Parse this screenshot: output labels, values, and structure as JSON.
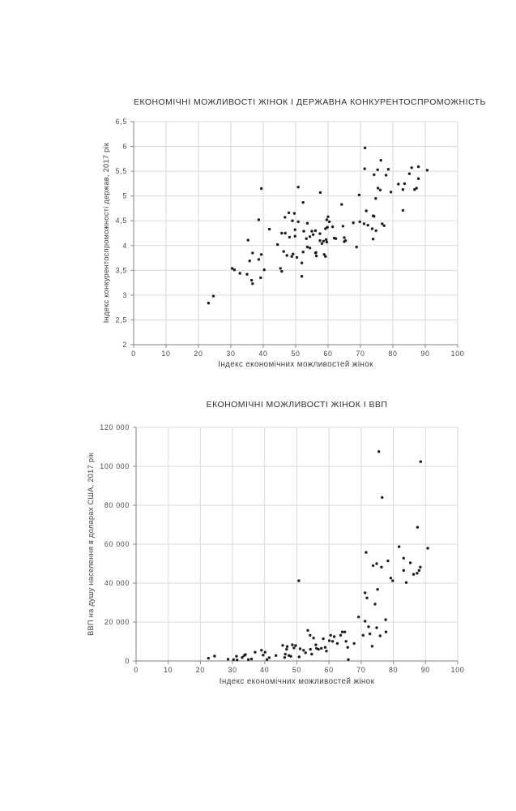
{
  "page": {
    "background": "#ffffff"
  },
  "colors": {
    "dot": "#1e1e1e",
    "grid": "#dadada",
    "axis": "#7f7f7f",
    "tick_mark": "#8a8a8a",
    "title_text": "#2d2d2d",
    "tick_text": "#474747"
  },
  "chart_data": [
    {
      "type": "scatter",
      "title": "ЕКОНОМІЧНІ МОЖЛИВОСТІ ЖІНОК І ДЕРЖАВНА КОНКУРЕНТОСПРОМОЖНІСТЬ",
      "xlabel": "Індекс економічних можливостей жінок",
      "ylabel": "Індекс конкурентоспроможності держав, 2017 рік",
      "xlim": [
        0,
        100
      ],
      "ylim": [
        2,
        6.5
      ],
      "grid": true,
      "legend": "none",
      "xticks": [
        0,
        10,
        20,
        30,
        40,
        50,
        60,
        70,
        80,
        90,
        100
      ],
      "xtick_labels": [
        "0",
        "10",
        "20",
        "30",
        "40",
        "50",
        "60",
        "70",
        "80",
        "90",
        "100"
      ],
      "yticks": [
        2,
        2.5,
        3,
        3.5,
        4,
        4.5,
        5,
        5.5,
        6,
        6.5
      ],
      "ytick_labels": [
        "2",
        "2,5",
        "3",
        "3,5",
        "4",
        "4,5",
        "5",
        "5,5",
        "6",
        "6,5"
      ],
      "points": [
        [
          39.4,
          5.15
        ],
        [
          50.8,
          5.18
        ],
        [
          57.6,
          5.07
        ],
        [
          71.4,
          5.97
        ],
        [
          76.3,
          5.72
        ],
        [
          71.3,
          5.55
        ],
        [
          74.2,
          5.43
        ],
        [
          75.3,
          5.53
        ],
        [
          78.6,
          5.54
        ],
        [
          77.9,
          5.42
        ],
        [
          85.8,
          5.57
        ],
        [
          87.9,
          5.59
        ],
        [
          85.1,
          5.45
        ],
        [
          90.6,
          5.52
        ],
        [
          87.9,
          5.35
        ],
        [
          81.7,
          5.24
        ],
        [
          83.6,
          5.25
        ],
        [
          83.1,
          5.13
        ],
        [
          86.7,
          5.13
        ],
        [
          87.3,
          5.16
        ],
        [
          75.4,
          5.16
        ],
        [
          76.1,
          5.12
        ],
        [
          69.6,
          5.02
        ],
        [
          74.7,
          4.95
        ],
        [
          79.4,
          5.08
        ],
        [
          52.3,
          4.87
        ],
        [
          64.2,
          4.83
        ],
        [
          71.8,
          4.7
        ],
        [
          83.1,
          4.71
        ],
        [
          73.9,
          4.6
        ],
        [
          74.2,
          4.59
        ],
        [
          60.0,
          4.58
        ],
        [
          46.7,
          4.57
        ],
        [
          47.9,
          4.66
        ],
        [
          49.6,
          4.65
        ],
        [
          38.6,
          4.52
        ],
        [
          49.0,
          4.5
        ],
        [
          50.8,
          4.48
        ],
        [
          53.6,
          4.45
        ],
        [
          59.6,
          4.52
        ],
        [
          60.4,
          4.48
        ],
        [
          67.8,
          4.46
        ],
        [
          69.8,
          4.48
        ],
        [
          71.1,
          4.44
        ],
        [
          76.7,
          4.44
        ],
        [
          77.3,
          4.4
        ],
        [
          72.3,
          4.41
        ],
        [
          64.6,
          4.39
        ],
        [
          61.4,
          4.38
        ],
        [
          59.8,
          4.37
        ],
        [
          73.6,
          4.34
        ],
        [
          74.8,
          4.3
        ],
        [
          57.5,
          4.24
        ],
        [
          59.2,
          4.34
        ],
        [
          55.0,
          4.29
        ],
        [
          56.1,
          4.3
        ],
        [
          52.5,
          4.29
        ],
        [
          53.3,
          4.14
        ],
        [
          54.4,
          4.18
        ],
        [
          55.4,
          4.22
        ],
        [
          61.9,
          4.15
        ],
        [
          62.4,
          4.14
        ],
        [
          65.0,
          4.16
        ],
        [
          65.0,
          4.08
        ],
        [
          65.4,
          4.1
        ],
        [
          58.6,
          4.09
        ],
        [
          59.4,
          4.12
        ],
        [
          57.5,
          4.1
        ],
        [
          58.1,
          4.04
        ],
        [
          59.6,
          4.07
        ],
        [
          73.9,
          4.13
        ],
        [
          68.8,
          3.97
        ],
        [
          41.9,
          4.33
        ],
        [
          45.7,
          4.25
        ],
        [
          46.8,
          4.25
        ],
        [
          48.1,
          4.17
        ],
        [
          49.8,
          4.32
        ],
        [
          49.8,
          4.19
        ],
        [
          35.3,
          4.11
        ],
        [
          44.4,
          4.02
        ],
        [
          36.7,
          3.85
        ],
        [
          39.4,
          3.82
        ],
        [
          46.3,
          3.88
        ],
        [
          47.3,
          3.8
        ],
        [
          49.2,
          3.83
        ],
        [
          50.4,
          3.76
        ],
        [
          48.8,
          3.78
        ],
        [
          52.3,
          3.87
        ],
        [
          53.6,
          3.97
        ],
        [
          54.4,
          3.95
        ],
        [
          56.1,
          3.85
        ],
        [
          56.4,
          3.79
        ],
        [
          56.3,
          3.86
        ],
        [
          58.8,
          3.82
        ],
        [
          59.2,
          3.78
        ],
        [
          35.8,
          3.69
        ],
        [
          38.6,
          3.72
        ],
        [
          51.9,
          3.65
        ],
        [
          30.4,
          3.54
        ],
        [
          31.1,
          3.51
        ],
        [
          32.8,
          3.44
        ],
        [
          35.0,
          3.42
        ],
        [
          40.3,
          3.51
        ],
        [
          45.3,
          3.54
        ],
        [
          45.7,
          3.48
        ],
        [
          39.2,
          3.35
        ],
        [
          36.4,
          3.3
        ],
        [
          36.7,
          3.23
        ],
        [
          51.9,
          3.38
        ],
        [
          24.6,
          2.98
        ],
        [
          23.1,
          2.84
        ]
      ]
    },
    {
      "type": "scatter",
      "title": "ЕКОНОМІЧНІ МОЖЛИВОСТІ ЖІНОК І ВВП",
      "xlabel": "Індекс економічних можливостей жінок",
      "ylabel": "ВВП на душу населення в доларах США, 2017 рік",
      "xlim": [
        0,
        100
      ],
      "ylim": [
        0,
        120000
      ],
      "grid": true,
      "legend": "none",
      "xticks": [
        0,
        10,
        20,
        30,
        40,
        50,
        60,
        70,
        80,
        90,
        100
      ],
      "xtick_labels": [
        "0",
        "10",
        "20",
        "30",
        "40",
        "50",
        "60",
        "70",
        "80",
        "90",
        "100"
      ],
      "yticks": [
        0,
        20000,
        40000,
        60000,
        80000,
        100000,
        120000
      ],
      "ytick_labels": [
        "0",
        "20 000",
        "40 000",
        "60 000",
        "80 000",
        "100 000",
        "120 000"
      ],
      "points": [
        [
          75.5,
          107600
        ],
        [
          88.5,
          102400
        ],
        [
          76.5,
          84000
        ],
        [
          87.5,
          68700
        ],
        [
          81.8,
          58700
        ],
        [
          90.7,
          57900
        ],
        [
          71.5,
          55800
        ],
        [
          78.3,
          51400
        ],
        [
          83.2,
          52800
        ],
        [
          73.7,
          49000
        ],
        [
          74.8,
          50000
        ],
        [
          76.3,
          48200
        ],
        [
          85.3,
          50400
        ],
        [
          88.4,
          48200
        ],
        [
          88.0,
          46500
        ],
        [
          83.2,
          46500
        ],
        [
          86.3,
          44500
        ],
        [
          87.4,
          45100
        ],
        [
          79.2,
          42600
        ],
        [
          79.8,
          41200
        ],
        [
          84.0,
          40300
        ],
        [
          50.6,
          41200
        ],
        [
          75.1,
          36800
        ],
        [
          71.2,
          35000
        ],
        [
          71.8,
          32400
        ],
        [
          74.3,
          29200
        ],
        [
          69.2,
          22600
        ],
        [
          71.2,
          20400
        ],
        [
          77.6,
          21200
        ],
        [
          72.3,
          17600
        ],
        [
          74.8,
          17100
        ],
        [
          72.7,
          13900
        ],
        [
          70.6,
          13200
        ],
        [
          75.9,
          12900
        ],
        [
          77.7,
          14900
        ],
        [
          73.4,
          7600
        ],
        [
          22.5,
          1400
        ],
        [
          24.4,
          2500
        ],
        [
          28.6,
          900
        ],
        [
          30.3,
          700
        ],
        [
          31.2,
          2400
        ],
        [
          31.4,
          500
        ],
        [
          33.0,
          1800
        ],
        [
          33.6,
          2800
        ],
        [
          34.0,
          3300
        ],
        [
          34.9,
          700
        ],
        [
          35.9,
          1000
        ],
        [
          37.0,
          4500
        ],
        [
          39.0,
          5500
        ],
        [
          39.5,
          3000
        ],
        [
          40.1,
          4500
        ],
        [
          40.7,
          700
        ],
        [
          41.4,
          1700
        ],
        [
          43.5,
          2800
        ],
        [
          45.6,
          8000
        ],
        [
          46.2,
          1800
        ],
        [
          46.4,
          3500
        ],
        [
          46.8,
          6000
        ],
        [
          47.0,
          7400
        ],
        [
          47.5,
          2800
        ],
        [
          48.6,
          8300
        ],
        [
          48.1,
          2400
        ],
        [
          49.1,
          6700
        ],
        [
          49.6,
          7900
        ],
        [
          50.7,
          2100
        ],
        [
          51.0,
          6250
        ],
        [
          52.1,
          5500
        ],
        [
          52.7,
          4200
        ],
        [
          53.4,
          15700
        ],
        [
          54.1,
          13200
        ],
        [
          54.2,
          6000
        ],
        [
          54.6,
          3500
        ],
        [
          55.2,
          11800
        ],
        [
          55.9,
          8300
        ],
        [
          56.1,
          6500
        ],
        [
          56.7,
          6000
        ],
        [
          57.6,
          6500
        ],
        [
          58.2,
          11400
        ],
        [
          58.8,
          7000
        ],
        [
          59.2,
          5100
        ],
        [
          60.1,
          10400
        ],
        [
          60.5,
          13200
        ],
        [
          61.1,
          10100
        ],
        [
          61.6,
          12500
        ],
        [
          62.6,
          9000
        ],
        [
          63.6,
          13200
        ],
        [
          64.1,
          14900
        ],
        [
          64.9,
          14900
        ],
        [
          65.3,
          10100
        ],
        [
          65.8,
          7000
        ],
        [
          66.0,
          700
        ],
        [
          67.8,
          9000
        ]
      ]
    }
  ]
}
